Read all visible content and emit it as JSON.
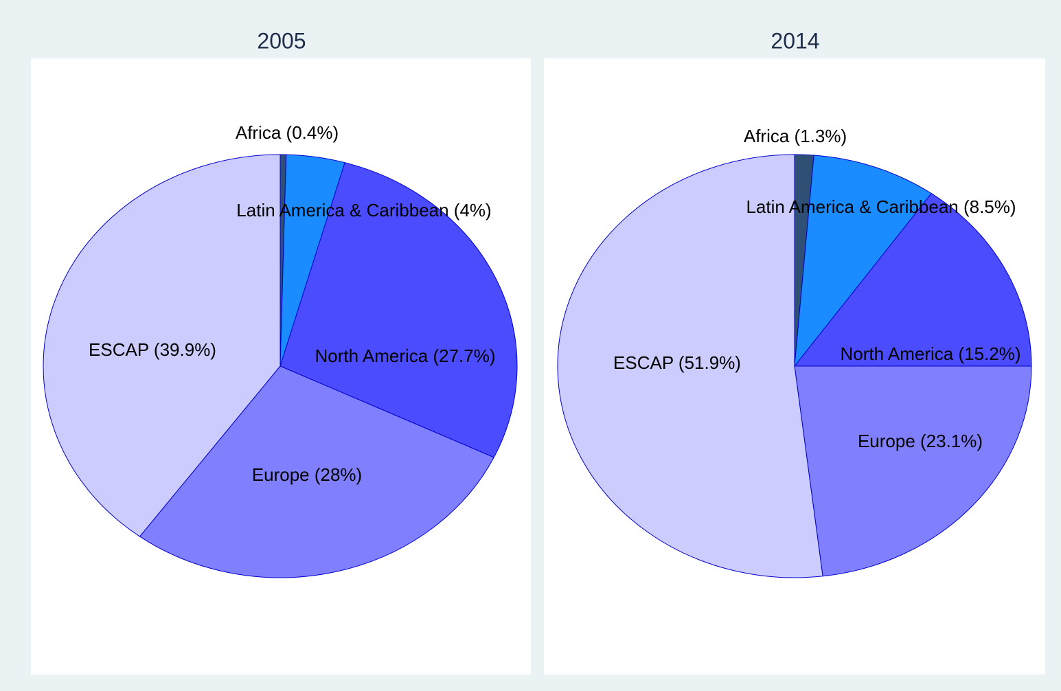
{
  "chart_data": [
    {
      "type": "pie",
      "title": "2005",
      "categories": [
        "Africa (0.4%)",
        "Latin America & Caribbean (4%)",
        "North America (27.7%)",
        "Europe (28%)",
        "ESCAP (39.9%)"
      ],
      "values": [
        0.4,
        4,
        27.7,
        28,
        39.9
      ],
      "colors": [
        "#2f4f75",
        "#1a8cff",
        "#4c4cff",
        "#8080ff",
        "#ccccff"
      ]
    },
    {
      "type": "pie",
      "title": "2014",
      "categories": [
        "Africa (1.3%)",
        "Latin America & Caribbean (8.5%)",
        "North America (15.2%)",
        "Europe (23.1%)",
        "ESCAP (51.9%)"
      ],
      "values": [
        1.3,
        8.5,
        15.2,
        23.1,
        51.9
      ],
      "colors": [
        "#2f4f75",
        "#1a8cff",
        "#4c4cff",
        "#8080ff",
        "#ccccff"
      ]
    }
  ]
}
